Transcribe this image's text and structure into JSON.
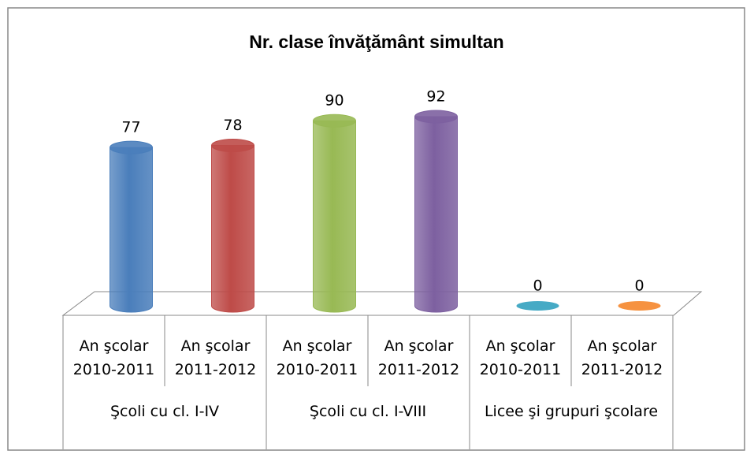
{
  "chart_data": {
    "type": "bar",
    "title": "Nr. clase învăţământ simultan",
    "groups": [
      {
        "name": "Şcoli cu cl. I-IV",
        "categories": [
          "An şcolar 2010-2011",
          "An şcolar 2011-2012"
        ]
      },
      {
        "name": "Şcoli cu cl. I-VIII",
        "categories": [
          "An şcolar 2010-2011",
          "An şcolar 2011-2012"
        ]
      },
      {
        "name": "Licee şi grupuri şcolare",
        "categories": [
          "An şcolar 2010-2011",
          "An şcolar 2011-2012"
        ]
      }
    ],
    "values": [
      77,
      78,
      90,
      92,
      0,
      0
    ],
    "colors": [
      "#4a7ebb",
      "#be4b48",
      "#98b954",
      "#7d60a0",
      "#46aac5",
      "#f69240"
    ]
  }
}
